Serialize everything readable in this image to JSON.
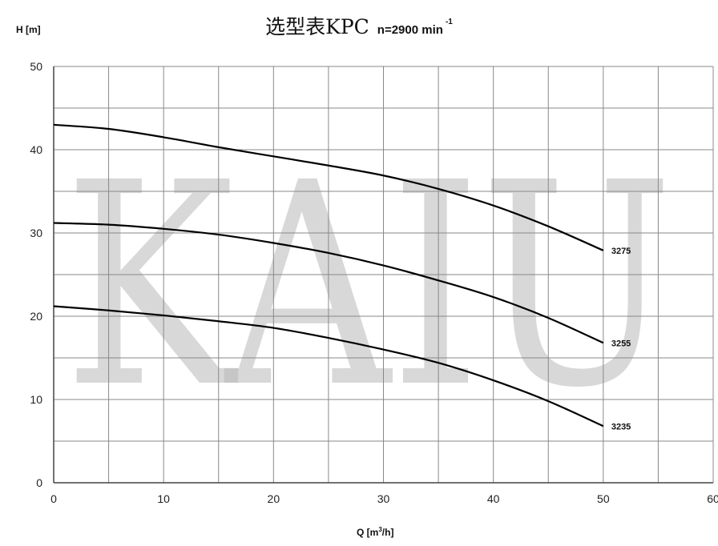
{
  "title": {
    "main": "选型表KPC",
    "speed": "n=2900 min",
    "speed_exp": "-1"
  },
  "watermark": "KAIU",
  "chart_data": {
    "type": "line",
    "ylabel": "H [m]",
    "xlabel": {
      "prefix": "Q [m",
      "sup": "3",
      "suffix": "/h]"
    },
    "xlim": [
      0,
      60
    ],
    "ylim": [
      0,
      50
    ],
    "x_ticks": [
      0,
      10,
      20,
      30,
      40,
      50,
      60
    ],
    "y_ticks": [
      0,
      10,
      20,
      30,
      40,
      50
    ],
    "grid": true,
    "minor_x_step": 5,
    "minor_y_step": 5,
    "line_color": "#000000",
    "grid_color": "#888888",
    "series": [
      {
        "name": "3275",
        "x": [
          0,
          5,
          10,
          15,
          20,
          25,
          30,
          35,
          40,
          45,
          50
        ],
        "y": [
          43.0,
          42.5,
          41.5,
          40.3,
          39.2,
          38.1,
          36.9,
          35.3,
          33.3,
          30.8,
          27.9
        ]
      },
      {
        "name": "3255",
        "x": [
          0,
          5,
          10,
          15,
          20,
          25,
          30,
          35,
          40,
          45,
          50
        ],
        "y": [
          31.2,
          31.0,
          30.5,
          29.8,
          28.8,
          27.6,
          26.1,
          24.3,
          22.3,
          19.8,
          16.8
        ]
      },
      {
        "name": "3235",
        "x": [
          0,
          5,
          10,
          15,
          20,
          25,
          30,
          35,
          40,
          45,
          50
        ],
        "y": [
          21.2,
          20.7,
          20.1,
          19.4,
          18.6,
          17.4,
          16.0,
          14.4,
          12.3,
          9.8,
          6.8
        ]
      }
    ]
  }
}
